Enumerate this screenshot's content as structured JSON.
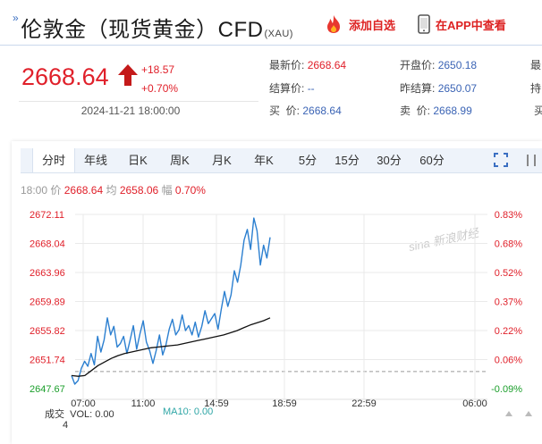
{
  "header": {
    "mark": "»",
    "title": "伦敦金（现货黄金）CFD",
    "code": "(XAU)",
    "add_fav": "添加自选",
    "app_view": "在APP中查看"
  },
  "quote": {
    "price": "2668.64",
    "change": "+18.57",
    "change_pct": "+0.70%",
    "time": "2024-11-21 18:00:00",
    "fields": {
      "latest_label": "最新价:",
      "latest": "2668.64",
      "settle_label": "结算价:",
      "settle": "--",
      "buy_label": "买  价:",
      "buy": "2668.64",
      "open_label": "开盘价:",
      "open": "2650.18",
      "prev_label": "昨结算:",
      "prev": "2650.07",
      "sell_label": "卖  价:",
      "sell": "2668.99",
      "r1": "最",
      "r2": "持",
      "r3": "买"
    }
  },
  "tabs": [
    "分时",
    "年线",
    "日K",
    "周K",
    "月K",
    "年K",
    "5分",
    "15分",
    "30分",
    "60分"
  ],
  "info": {
    "time": "18:00",
    "price_label": "价",
    "price": "2668.64",
    "avg_label": "均",
    "avg": "2658.06",
    "amp_label": "幅",
    "amp": "0.70%"
  },
  "watermark": "sina 新浪财经",
  "bottom": {
    "vol_label": "成交",
    "vol": "VOL: 0.00",
    "ma10": "MA10: 0.00",
    "extra": "4"
  },
  "chart_data": {
    "type": "line",
    "y_ticks": [
      "2672.11",
      "2668.04",
      "2663.96",
      "2659.89",
      "2655.82",
      "2651.74",
      "2647.67"
    ],
    "pct_ticks": [
      "0.83%",
      "0.68%",
      "0.52%",
      "0.37%",
      "0.22%",
      "0.06%",
      "-0.09%"
    ],
    "x_ticks": [
      "07:00",
      "11:00",
      "14:59",
      "18:59",
      "22:59",
      "06:00"
    ],
    "ylim": [
      2647.67,
      2672.11
    ],
    "reference": 2650.07,
    "series": [
      {
        "color": "#2b7fd0",
        "values": [
          2649.5,
          2648.3,
          2648.8,
          2650.5,
          2651.5,
          2650.8,
          2652.6,
          2651.0,
          2655.0,
          2652.8,
          2654.5,
          2657.6,
          2655.2,
          2656.4,
          2653.5,
          2654.0,
          2655.0,
          2652.6,
          2654.5,
          2656.5,
          2653.2,
          2655.3,
          2657.2,
          2654.2,
          2653.0,
          2651.2,
          2653.0,
          2655.2,
          2652.4,
          2653.8,
          2656.0,
          2657.4,
          2655.2,
          2655.9,
          2658.0,
          2655.8,
          2656.5,
          2655.2,
          2657.0,
          2654.9,
          2656.4,
          2658.6,
          2656.8,
          2657.5,
          2658.2,
          2656.0,
          2658.8,
          2661.3,
          2659.2,
          2660.8,
          2664.2,
          2662.6,
          2665.0,
          2668.5,
          2670.0,
          2667.2,
          2671.6,
          2669.8,
          2665.0,
          2667.8,
          2666.0,
          2668.9
        ]
      },
      {
        "color": "#111111",
        "values": [
          2649.5,
          2649.4,
          2649.5,
          2650.2,
          2650.9,
          2651.4,
          2651.9,
          2652.3,
          2652.6,
          2652.8,
          2653.0,
          2653.2,
          2653.4,
          2653.5,
          2653.6,
          2653.7,
          2653.8,
          2654.0,
          2654.2,
          2654.4,
          2654.6,
          2654.8,
          2655.0,
          2655.2,
          2655.5,
          2655.8,
          2656.2,
          2656.6,
          2656.9,
          2657.2,
          2657.6
        ]
      }
    ]
  }
}
